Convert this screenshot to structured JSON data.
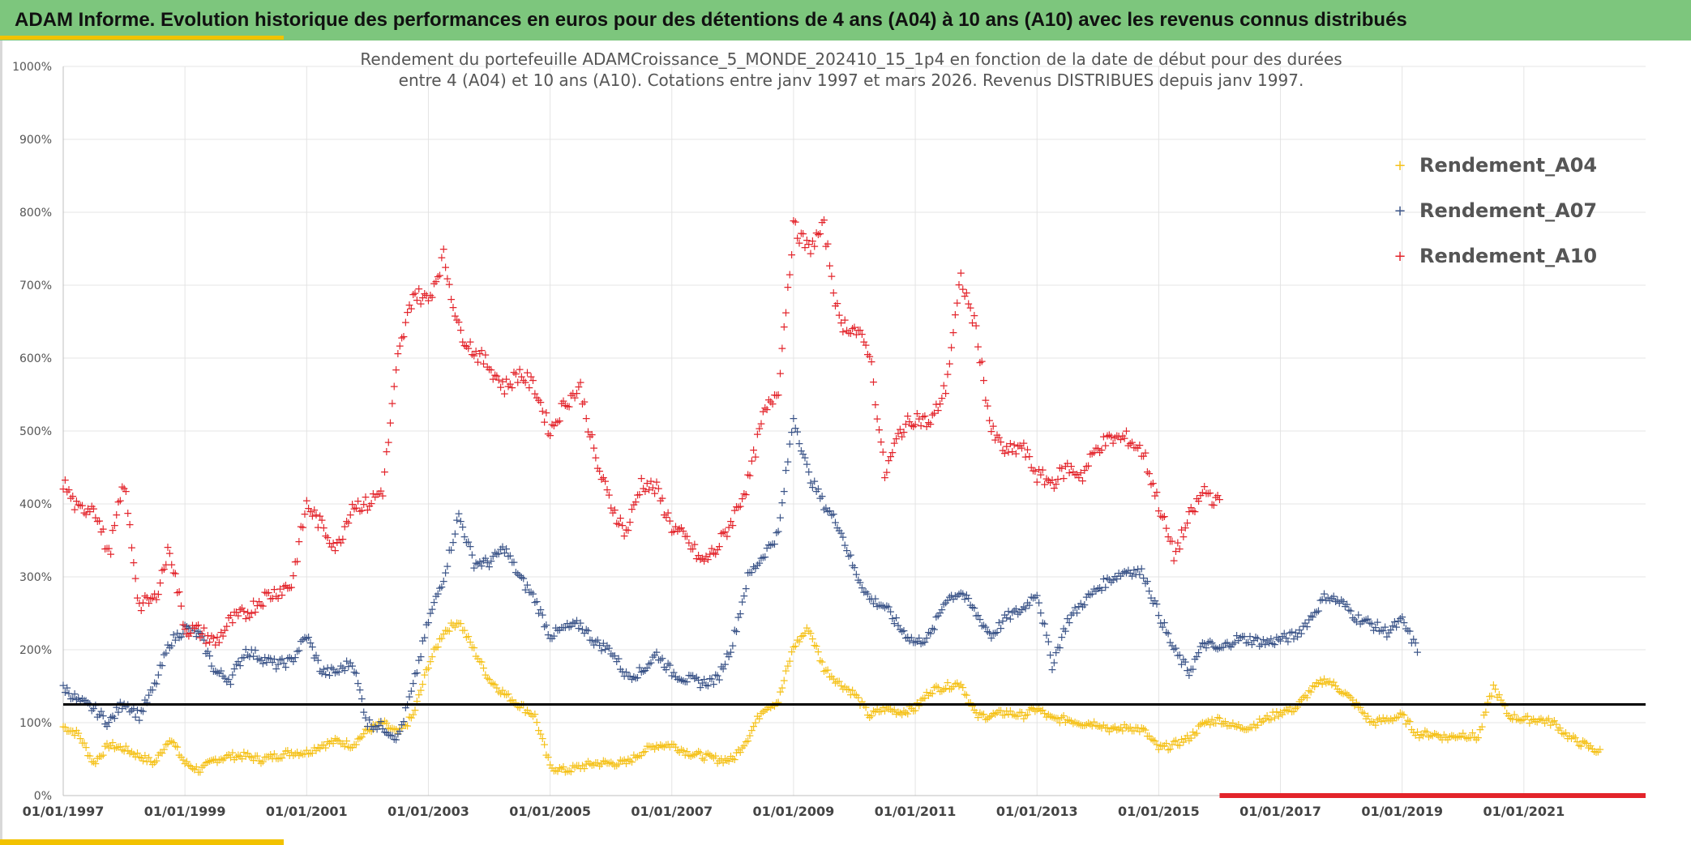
{
  "banner": {
    "title": "ADAM Informe. Evolution historique des performances en euros pour des détentions de 4 ans (A04) à 10 ans (A10) avec les revenus connus distribués"
  },
  "colors": {
    "banner_bg": "#7dc67d",
    "accent": "#f2c200",
    "A04": "#f5c21b",
    "A07": "#3b5488",
    "A10": "#e3242b",
    "reference_line": "#000000",
    "gridline": "#e4e4e4"
  },
  "chart_data": {
    "type": "scatter",
    "title_line1": "Rendement du portefeuille ADAMCroissance_5_MONDE_202410_15_1p4  en fonction de la date de début pour des durées",
    "title_line2": "entre 4 (A04) et 10 ans (A10). Cotations entre janv 1997 et mars 2026. Revenus DISTRIBUES depuis janv 1997.",
    "xlabel": "",
    "ylabel": "",
    "x_range": [
      "01/01/1997",
      "01/01/2023"
    ],
    "y_range": [
      0,
      1000
    ],
    "y_unit": "%",
    "x_ticks": [
      "01/01/1997",
      "01/01/1999",
      "01/01/2001",
      "01/01/2003",
      "01/01/2005",
      "01/01/2007",
      "01/01/2009",
      "01/01/2011",
      "01/01/2013",
      "01/01/2015",
      "01/01/2017",
      "01/01/2019",
      "01/01/2021"
    ],
    "y_ticks": [
      "0%",
      "100%",
      "200%",
      "300%",
      "400%",
      "500%",
      "600%",
      "700%",
      "800%",
      "900%",
      "1000%"
    ],
    "grid": true,
    "legend_position": "top-right",
    "reference_line": {
      "y": 125
    },
    "series": [
      {
        "name": "Rendement_A04",
        "color": "#f5c21b",
        "x": [
          1997.0,
          1997.25,
          1997.5,
          1997.75,
          1998.0,
          1998.25,
          1998.5,
          1998.75,
          1999.0,
          1999.25,
          1999.5,
          1999.75,
          2000.0,
          2000.25,
          2000.5,
          2000.75,
          2001.0,
          2001.25,
          2001.5,
          2001.75,
          2002.0,
          2002.25,
          2002.5,
          2002.75,
          2003.0,
          2003.25,
          2003.5,
          2003.75,
          2004.0,
          2004.25,
          2004.5,
          2004.75,
          2005.0,
          2005.25,
          2005.5,
          2005.75,
          2006.0,
          2006.25,
          2006.5,
          2006.75,
          2007.0,
          2007.25,
          2007.5,
          2007.75,
          2008.0,
          2008.25,
          2008.5,
          2008.75,
          2009.0,
          2009.25,
          2009.5,
          2009.75,
          2010.0,
          2010.25,
          2010.5,
          2010.75,
          2011.0,
          2011.25,
          2011.5,
          2011.75,
          2012.0,
          2012.25,
          2012.5,
          2012.75,
          2013.0,
          2013.25,
          2013.5,
          2013.75,
          2014.0,
          2014.25,
          2014.5,
          2014.75,
          2015.0,
          2015.25,
          2015.5,
          2015.75,
          2016.0,
          2016.25,
          2016.5,
          2016.75,
          2017.0,
          2017.25,
          2017.5,
          2017.75,
          2018.0,
          2018.25,
          2018.5,
          2018.75,
          2019.0,
          2019.25,
          2019.5,
          2019.75,
          2020.0,
          2020.25,
          2020.5,
          2020.75,
          2021.0,
          2021.25,
          2021.5,
          2021.75,
          2022.0,
          2022.25
        ],
        "y": [
          95,
          85,
          45,
          70,
          65,
          55,
          45,
          80,
          45,
          35,
          50,
          55,
          55,
          50,
          55,
          60,
          60,
          70,
          75,
          70,
          90,
          100,
          85,
          110,
          180,
          225,
          240,
          200,
          160,
          140,
          125,
          110,
          40,
          35,
          40,
          45,
          45,
          45,
          60,
          70,
          70,
          60,
          55,
          50,
          50,
          80,
          120,
          130,
          205,
          230,
          175,
          155,
          140,
          110,
          120,
          115,
          120,
          145,
          150,
          155,
          110,
          110,
          115,
          110,
          120,
          105,
          105,
          100,
          100,
          90,
          95,
          90,
          65,
          70,
          80,
          100,
          105,
          95,
          95,
          105,
          115,
          120,
          145,
          160,
          145,
          125,
          100,
          105,
          110,
          85,
          85,
          80,
          85,
          80,
          150,
          110,
          105,
          105,
          100,
          80,
          70,
          60
        ]
      },
      {
        "name": "Rendement_A07",
        "color": "#3b5488",
        "x": [
          1997.0,
          1997.25,
          1997.5,
          1997.75,
          1998.0,
          1998.25,
          1998.5,
          1998.75,
          1999.0,
          1999.25,
          1999.5,
          1999.75,
          2000.0,
          2000.25,
          2000.5,
          2000.75,
          2001.0,
          2001.25,
          2001.5,
          2001.75,
          2002.0,
          2002.25,
          2002.5,
          2002.75,
          2003.0,
          2003.25,
          2003.5,
          2003.75,
          2004.0,
          2004.25,
          2004.5,
          2004.75,
          2005.0,
          2005.25,
          2005.5,
          2005.75,
          2006.0,
          2006.25,
          2006.5,
          2006.75,
          2007.0,
          2007.25,
          2007.5,
          2007.75,
          2008.0,
          2008.25,
          2008.5,
          2008.75,
          2009.0,
          2009.25,
          2009.5,
          2009.75,
          2010.0,
          2010.25,
          2010.5,
          2010.75,
          2011.0,
          2011.25,
          2011.5,
          2011.75,
          2012.0,
          2012.25,
          2012.5,
          2012.75,
          2013.0,
          2013.25,
          2013.5,
          2013.75,
          2014.0,
          2014.25,
          2014.5,
          2014.75,
          2015.0,
          2015.25,
          2015.5,
          2015.75,
          2016.0,
          2016.25,
          2016.5,
          2016.75,
          2017.0,
          2017.25,
          2017.5,
          2017.75,
          2018.0,
          2018.25,
          2018.5,
          2018.75,
          2019.0,
          2019.25
        ],
        "y": [
          150,
          130,
          120,
          100,
          130,
          110,
          150,
          210,
          230,
          220,
          170,
          160,
          200,
          190,
          180,
          185,
          220,
          170,
          170,
          185,
          100,
          95,
          80,
          150,
          240,
          300,
          385,
          320,
          320,
          340,
          300,
          270,
          220,
          230,
          235,
          210,
          200,
          165,
          170,
          195,
          170,
          160,
          155,
          160,
          210,
          300,
          330,
          360,
          520,
          440,
          400,
          370,
          310,
          270,
          260,
          230,
          210,
          220,
          270,
          280,
          250,
          220,
          245,
          255,
          280,
          180,
          240,
          265,
          285,
          300,
          310,
          305,
          250,
          200,
          170,
          210,
          200,
          215,
          215,
          210,
          215,
          220,
          245,
          275,
          265,
          245,
          235,
          225,
          240,
          200
        ]
      },
      {
        "name": "Rendement_A10",
        "color": "#e3242b",
        "x": [
          1997.0,
          1997.25,
          1997.5,
          1997.75,
          1998.0,
          1998.25,
          1998.5,
          1998.75,
          1999.0,
          1999.25,
          1999.5,
          1999.75,
          2000.0,
          2000.25,
          2000.5,
          2000.75,
          2001.0,
          2001.25,
          2001.5,
          2001.75,
          2002.0,
          2002.25,
          2002.5,
          2002.75,
          2003.0,
          2003.25,
          2003.5,
          2003.75,
          2004.0,
          2004.25,
          2004.5,
          2004.75,
          2005.0,
          2005.25,
          2005.5,
          2005.75,
          2006.0,
          2006.25,
          2006.5,
          2006.75,
          2007.0,
          2007.25,
          2007.5,
          2007.75,
          2008.0,
          2008.25,
          2008.5,
          2008.75,
          2009.0,
          2009.25,
          2009.5,
          2009.75,
          2010.0,
          2010.25,
          2010.5,
          2010.75,
          2011.0,
          2011.25,
          2011.5,
          2011.75,
          2012.0,
          2012.25,
          2012.5,
          2012.75,
          2013.0,
          2013.25,
          2013.5,
          2013.75,
          2014.0,
          2014.25,
          2014.5,
          2014.75,
          2015.0,
          2015.25,
          2015.5,
          2015.75,
          2016.0
        ],
        "y": [
          430,
          390,
          400,
          330,
          430,
          260,
          270,
          340,
          230,
          225,
          210,
          240,
          250,
          270,
          280,
          290,
          400,
          370,
          340,
          400,
          400,
          420,
          600,
          690,
          680,
          740,
          640,
          610,
          590,
          560,
          580,
          560,
          500,
          540,
          560,
          460,
          400,
          360,
          430,
          420,
          370,
          350,
          320,
          340,
          380,
          430,
          520,
          560,
          780,
          750,
          780,
          650,
          640,
          610,
          440,
          500,
          520,
          510,
          560,
          710,
          640,
          500,
          470,
          480,
          440,
          430,
          450,
          440,
          480,
          490,
          490,
          470,
          400,
          330,
          380,
          420,
          400
        ]
      }
    ],
    "baseline_strip": {
      "color": "#e3242b",
      "x_from": 2016.0,
      "x_to": 2023.0,
      "y": 0
    }
  }
}
